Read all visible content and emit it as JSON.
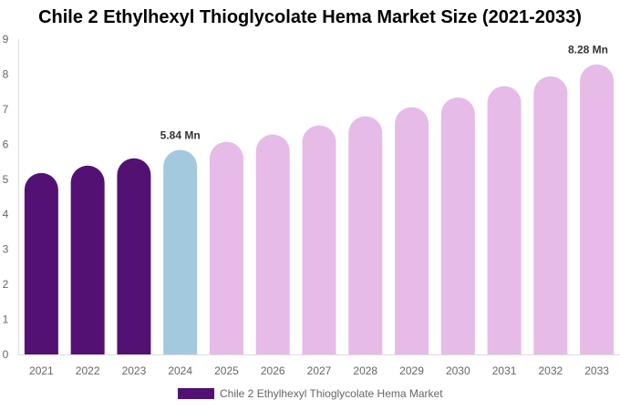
{
  "chart_data": {
    "type": "bar",
    "title": "Chile 2 Ethylhexyl Thioglycolate Hema Market Size (2021-2033)",
    "categories": [
      "2021",
      "2022",
      "2023",
      "2024",
      "2025",
      "2026",
      "2027",
      "2028",
      "2029",
      "2030",
      "2031",
      "2032",
      "2033"
    ],
    "values": [
      5.18,
      5.39,
      5.6,
      5.84,
      6.07,
      6.28,
      6.54,
      6.8,
      7.06,
      7.34,
      7.66,
      7.94,
      8.28
    ],
    "data_labels": {
      "3": "5.84 Mn",
      "12": "8.28 Mn"
    },
    "ylim": [
      0,
      9
    ],
    "yticks": [
      0,
      1,
      2,
      3,
      4,
      5,
      6,
      7,
      8,
      9
    ],
    "grid": false,
    "colors": {
      "historic": "#531173",
      "current": "#a3c9de",
      "forecast": "#e6bbe8"
    },
    "bar_colors": [
      "historic",
      "historic",
      "historic",
      "current",
      "forecast",
      "forecast",
      "forecast",
      "forecast",
      "forecast",
      "forecast",
      "forecast",
      "forecast",
      "forecast"
    ],
    "legend": {
      "label": "Chile 2 Ethylhexyl Thioglycolate Hema Market",
      "color": "#531173",
      "placement": "bottom"
    }
  }
}
